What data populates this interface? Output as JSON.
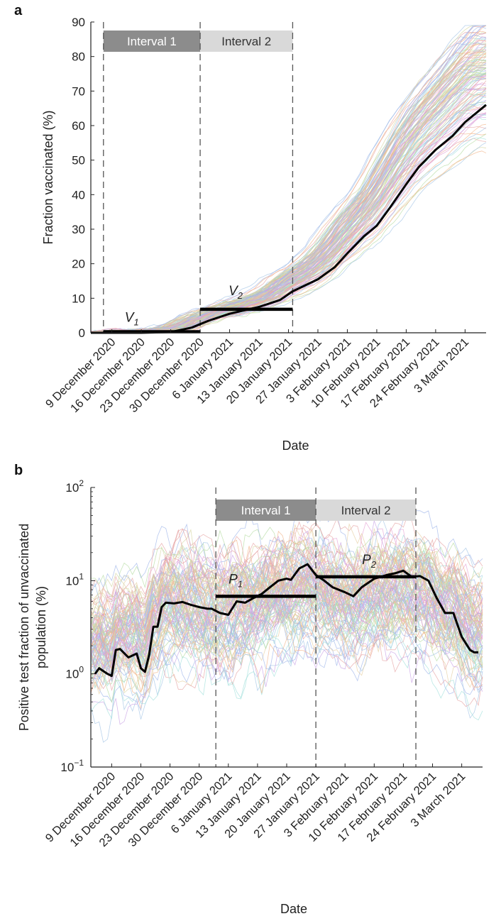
{
  "figure": {
    "panel_a_letter": "a",
    "panel_b_letter": "b"
  },
  "chart_data": [
    {
      "type": "line",
      "panel": "a",
      "xlabel": "Date",
      "ylabel": "Fraction vaccinated (%)",
      "ylim": [
        0,
        90
      ],
      "yticks": [
        0,
        10,
        20,
        30,
        40,
        50,
        60,
        70,
        80,
        90
      ],
      "x_is_date": true,
      "x_range": [
        "2020-12-04",
        "2021-03-08"
      ],
      "xtick_dates": [
        "2020-12-09",
        "2020-12-16",
        "2020-12-23",
        "2020-12-30",
        "2021-01-06",
        "2021-01-13",
        "2021-01-20",
        "2021-01-27",
        "2021-02-03",
        "2021-02-10",
        "2021-02-17",
        "2021-02-24",
        "2021-03-03"
      ],
      "xtick_labels": [
        "9 December 2020",
        "16 December 2020",
        "23 December 2020",
        "30 December 2020",
        "6 January 2021",
        "13 January 2021",
        "20 January 2021",
        "27 January 2021",
        "3 February 2021",
        "10 February 2021",
        "17 February 2021",
        "24 February 2021",
        "3 March 2021"
      ],
      "background_lines": {
        "count": 120,
        "style": "thin multicolored individual regions"
      },
      "colors": [
        "#e6a3a3",
        "#a3c4e6",
        "#b5dca3",
        "#e6cfa3",
        "#c9a3e6",
        "#a3e0dc",
        "#e6a3d4",
        "#d6d6a3",
        "#f2b48a",
        "#9fb6ea"
      ],
      "highlight_series": {
        "x": [
          "2020-12-04",
          "2020-12-09",
          "2020-12-16",
          "2020-12-23",
          "2020-12-28",
          "2021-01-01",
          "2021-01-06",
          "2021-01-13",
          "2021-01-18",
          "2021-01-21",
          "2021-01-27",
          "2021-01-31",
          "2021-02-03",
          "2021-02-07",
          "2021-02-10",
          "2021-02-13",
          "2021-02-17",
          "2021-02-20",
          "2021-02-24",
          "2021-02-28",
          "2021-03-03",
          "2021-03-08"
        ],
        "y": [
          0,
          0,
          0,
          0.2,
          1.5,
          3.5,
          5.5,
          7.5,
          9.5,
          12,
          15.5,
          19,
          23,
          28,
          31,
          36,
          43,
          48,
          53,
          57,
          61,
          66
        ]
      },
      "intervals": [
        {
          "label": "Interval 1",
          "start": "2020-12-07",
          "end": "2020-12-30",
          "shade": "#8c8c8c",
          "text_color": "#ffffff"
        },
        {
          "label": "Interval 2",
          "start": "2020-12-30",
          "end": "2021-01-21",
          "shade": "#d9d9d9",
          "text_color": "#333333"
        }
      ],
      "interval_means": [
        {
          "label": "V",
          "sub": "1",
          "value": 0.3,
          "start": "2020-12-07",
          "end": "2020-12-30"
        },
        {
          "label": "V",
          "sub": "2",
          "value": 6.8,
          "start": "2020-12-30",
          "end": "2021-01-21"
        }
      ]
    },
    {
      "type": "line",
      "panel": "b",
      "xlabel": "Date",
      "ylabel": "Positive test fraction of unvaccinated population (%)",
      "ylabel_lines": [
        "Positive test fraction of unvaccinated",
        "population (%)"
      ],
      "yscale": "log",
      "ylim": [
        0.1,
        100
      ],
      "yticks": [
        {
          "value": 0.1,
          "base": "10",
          "exp": "−1"
        },
        {
          "value": 1,
          "base": "10",
          "exp": "0"
        },
        {
          "value": 10,
          "base": "10",
          "exp": "1"
        },
        {
          "value": 100,
          "base": "10",
          "exp": "2"
        }
      ],
      "x_is_date": true,
      "x_range": [
        "2020-12-04",
        "2021-03-08"
      ],
      "xtick_dates": [
        "2020-12-09",
        "2020-12-16",
        "2020-12-23",
        "2020-12-30",
        "2021-01-06",
        "2021-01-13",
        "2021-01-20",
        "2021-01-27",
        "2021-02-03",
        "2021-02-10",
        "2021-02-17",
        "2021-02-24",
        "2021-03-03"
      ],
      "xtick_labels": [
        "9 December 2020",
        "16 December 2020",
        "23 December 2020",
        "30 December 2020",
        "6 January 2021",
        "13 January 2021",
        "20 January 2021",
        "27 January 2021",
        "3 February 2021",
        "10 February 2021",
        "17 February 2021",
        "24 February 2021",
        "3 March 2021"
      ],
      "background_lines": {
        "count": 110,
        "style": "thin multicolored individual regions"
      },
      "colors": [
        "#e6a3a3",
        "#a3c4e6",
        "#b5dca3",
        "#e6cfa3",
        "#c9a3e6",
        "#a3e0dc",
        "#e6a3d4",
        "#d6d6a3",
        "#f2b48a",
        "#9fb6ea"
      ],
      "highlight_series": {
        "x": [
          "2020-12-05",
          "2020-12-06",
          "2020-12-08",
          "2020-12-09",
          "2020-12-10",
          "2020-12-11",
          "2020-12-13",
          "2020-12-15",
          "2020-12-16",
          "2020-12-17",
          "2020-12-18",
          "2020-12-19",
          "2020-12-20",
          "2020-12-21",
          "2020-12-22",
          "2020-12-24",
          "2020-12-26",
          "2020-12-28",
          "2020-12-30",
          "2021-01-01",
          "2021-01-02",
          "2021-01-04",
          "2021-01-06",
          "2021-01-08",
          "2021-01-10",
          "2021-01-12",
          "2021-01-14",
          "2021-01-16",
          "2021-01-18",
          "2021-01-20",
          "2021-01-21",
          "2021-01-23",
          "2021-01-25",
          "2021-01-27",
          "2021-01-29",
          "2021-01-31",
          "2021-02-03",
          "2021-02-05",
          "2021-02-07",
          "2021-02-10",
          "2021-02-13",
          "2021-02-15",
          "2021-02-17",
          "2021-02-19",
          "2021-02-21",
          "2021-02-23",
          "2021-02-25",
          "2021-02-27",
          "2021-03-01",
          "2021-03-03",
          "2021-03-05",
          "2021-03-06",
          "2021-03-07"
        ],
        "y": [
          1.0,
          1.15,
          1.0,
          0.95,
          1.8,
          1.85,
          1.5,
          1.65,
          1.15,
          1.05,
          1.6,
          3.2,
          3.2,
          5.2,
          5.8,
          5.7,
          5.9,
          5.5,
          5.2,
          5.0,
          5.0,
          4.5,
          4.3,
          6.0,
          5.8,
          6.5,
          7.2,
          8.5,
          10.0,
          10.5,
          10.2,
          13.5,
          15.0,
          11.5,
          10.0,
          8.5,
          7.5,
          6.8,
          8.5,
          10.5,
          11.5,
          12.0,
          12.8,
          11.0,
          11.2,
          10.0,
          6.5,
          4.5,
          4.5,
          2.5,
          1.8,
          1.7,
          1.7
        ]
      },
      "intervals": [
        {
          "label": "Interval 1",
          "start": "2021-01-03",
          "end": "2021-01-27",
          "shade": "#8c8c8c",
          "text_color": "#ffffff"
        },
        {
          "label": "Interval 2",
          "start": "2021-01-27",
          "end": "2021-02-20",
          "shade": "#d9d9d9",
          "text_color": "#333333"
        }
      ],
      "interval_means": [
        {
          "label": "P",
          "sub": "1",
          "value": 6.8,
          "start": "2021-01-03",
          "end": "2021-01-27"
        },
        {
          "label": "P",
          "sub": "2",
          "value": 11.0,
          "start": "2021-01-27",
          "end": "2021-02-20"
        }
      ]
    }
  ]
}
